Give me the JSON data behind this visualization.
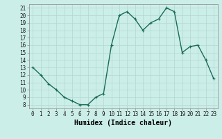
{
  "x": [
    0,
    1,
    2,
    3,
    4,
    5,
    6,
    7,
    8,
    9,
    10,
    11,
    12,
    13,
    14,
    15,
    16,
    17,
    18,
    19,
    20,
    21,
    22,
    23
  ],
  "y": [
    13,
    12,
    10.8,
    10,
    9,
    8.5,
    8,
    8,
    9,
    9.5,
    16,
    20,
    20.5,
    19.5,
    18,
    19,
    19.5,
    21,
    20.5,
    15,
    15.8,
    16,
    14,
    11.5
  ],
  "xlabel": "Humidex (Indice chaleur)",
  "ylim_min": 7.5,
  "ylim_max": 21.5,
  "xlim_min": -0.5,
  "xlim_max": 23.5,
  "yticks": [
    8,
    9,
    10,
    11,
    12,
    13,
    14,
    15,
    16,
    17,
    18,
    19,
    20,
    21
  ],
  "xticks": [
    0,
    1,
    2,
    3,
    4,
    5,
    6,
    7,
    8,
    9,
    10,
    11,
    12,
    13,
    14,
    15,
    16,
    17,
    18,
    19,
    20,
    21,
    22,
    23
  ],
  "line_color": "#1a6b5a",
  "bg_color": "#cceee8",
  "grid_color": "#b0d8d0",
  "tick_fontsize": 5.5,
  "xlabel_fontsize": 7,
  "line_width": 1.0,
  "marker_size": 2.5
}
